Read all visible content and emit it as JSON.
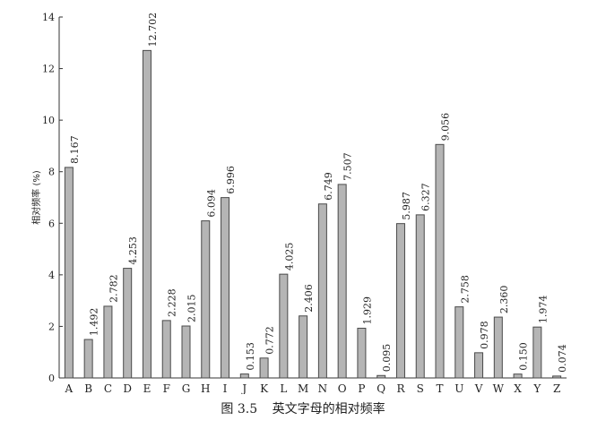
{
  "chart_data": {
    "type": "bar",
    "ylabel": "相对频率 (%)",
    "ylim": [
      0,
      14
    ],
    "yticks": [
      0,
      2,
      4,
      6,
      8,
      10,
      12,
      14
    ],
    "categories": [
      "A",
      "B",
      "C",
      "D",
      "E",
      "F",
      "G",
      "H",
      "I",
      "J",
      "K",
      "L",
      "M",
      "N",
      "O",
      "P",
      "Q",
      "R",
      "S",
      "T",
      "U",
      "V",
      "W",
      "X",
      "Y",
      "Z"
    ],
    "values": [
      8.167,
      1.492,
      2.782,
      4.253,
      12.702,
      2.228,
      2.015,
      6.094,
      6.996,
      0.153,
      0.772,
      4.025,
      2.406,
      6.749,
      7.507,
      1.929,
      0.095,
      5.987,
      6.327,
      9.056,
      2.758,
      0.978,
      2.36,
      0.15,
      1.974,
      0.074
    ],
    "data_labels": [
      "8.167",
      "1.492",
      "2.782",
      "4.253",
      "12.702",
      "2.228",
      "2.015",
      "6.094",
      "6.996",
      "0.153",
      "0.772",
      "4.025",
      "2.406",
      "6.749",
      "7.507",
      "1.929",
      "0.095",
      "5.987",
      "6.327",
      "9.056",
      "2.758",
      "0.978",
      "2.360",
      "0.150",
      "1.974",
      "0.074"
    ],
    "grid": false,
    "colors": {
      "bar_fill": "#b5b5b5",
      "bar_stroke": "#4a4a4a",
      "axis": "#333333",
      "text": "#222222"
    }
  },
  "caption": {
    "number": "图 3.5",
    "text": "英文字母的相对频率"
  }
}
